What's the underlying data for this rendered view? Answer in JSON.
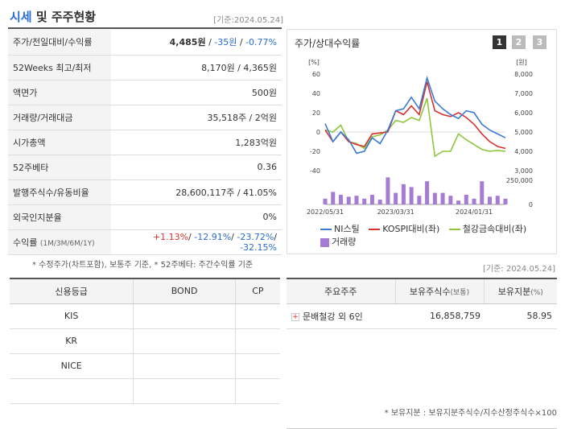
{
  "header": {
    "title_part1": "시세",
    "title_part2": " 및 주주현황",
    "date": "[기준:2024.05.24]"
  },
  "info_rows": [
    {
      "label": "주가/전일대비/수익률",
      "price": "4,485원",
      "sep1": " / ",
      "change": "-35원",
      "sep2": " / ",
      "rate": "-0.77%"
    },
    {
      "label": "52Weeks 최고/최저",
      "value": "8,170원 / 4,365원"
    },
    {
      "label": "액면가",
      "value": "500원"
    },
    {
      "label": "거래량/거래대금",
      "value": "35,518주 / 2억원"
    },
    {
      "label": "시가총액",
      "value": "1,283억원"
    },
    {
      "label": "52주베타",
      "value": "0.36"
    },
    {
      "label": "발행주식수/유동비율",
      "value": "28,600,117주 / 41.05%"
    },
    {
      "label": "외국인지분율",
      "value": "0%"
    },
    {
      "label": "수익률",
      "label_sub": "(1M/3M/6M/1Y)",
      "r1": "+1.13%",
      "r2": "-12.91%",
      "r3": "-23.72%",
      "r4": "-32.15%",
      "sep": "/ "
    }
  ],
  "note1": "* 수정주가(차트포함), 보통주 기준, * 52주베타: 주간수익률 기준",
  "chart": {
    "title": "주가/상대수익률",
    "buttons": [
      "1",
      "2",
      "3"
    ],
    "left_unit": "[%]",
    "right_unit": "[원]",
    "left_ticks": [
      "60",
      "40",
      "20",
      "0",
      "-20",
      "-40"
    ],
    "right_ticks": [
      "8,000",
      "7,000",
      "6,000",
      "5,000",
      "4,000",
      "3,000"
    ],
    "volume_ticks": [
      "250,000",
      "0"
    ],
    "x_ticks": [
      "2022/05/31",
      "2023/03/31",
      "2024/01/31"
    ],
    "legend": {
      "s1": "NI스틸",
      "s2": "KOSPI대비(좌)",
      "s3": "철강금속대비(좌)",
      "s4": "거래량"
    },
    "colors": {
      "s1": "#3a7bd5",
      "s2": "#d93030",
      "s3": "#8dc63f",
      "s4": "#a57bd4"
    }
  },
  "chart_data": {
    "type": "line",
    "title": "주가/상대수익률",
    "x": [
      "2022/05/31",
      "2022/07",
      "2022/08",
      "2022/09",
      "2022/10",
      "2022/11",
      "2022/12",
      "2023/01",
      "2023/02",
      "2023/03/31",
      "2023/04",
      "2023/05",
      "2023/06",
      "2023/07",
      "2023/08",
      "2023/09",
      "2023/10",
      "2023/11",
      "2023/12",
      "2024/01/31",
      "2024/02",
      "2024/03",
      "2024/04",
      "2024/05"
    ],
    "series": [
      {
        "name": "NI스틸",
        "axis": "right",
        "values": [
          5430,
          4500,
          5000,
          4600,
          3900,
          4000,
          4700,
          4400,
          5100,
          6100,
          6200,
          6800,
          6200,
          7800,
          6600,
          6200,
          5900,
          5700,
          6100,
          6000,
          5400,
          5100,
          4900,
          4700
        ]
      },
      {
        "name": "KOSPI대비(좌)",
        "axis": "left",
        "values": [
          2,
          -10,
          0,
          -10,
          -13,
          -15,
          -2,
          -1,
          0,
          22,
          18,
          27,
          18,
          52,
          22,
          18,
          16,
          20,
          15,
          8,
          -2,
          -10,
          -15,
          -17
        ]
      },
      {
        "name": "철강금속대비(좌)",
        "axis": "left",
        "values": [
          2,
          0,
          7,
          -10,
          -12,
          -17,
          -5,
          -3,
          2,
          12,
          10,
          15,
          12,
          35,
          -25,
          -20,
          -20,
          -2,
          -8,
          -13,
          -18,
          -20,
          -19,
          -20
        ]
      },
      {
        "name": "거래량",
        "axis": "volume",
        "values": [
          60000,
          130000,
          100000,
          80000,
          90000,
          60000,
          100000,
          50000,
          280000,
          120000,
          210000,
          180000,
          90000,
          240000,
          120000,
          120000,
          90000,
          40000,
          100000,
          60000,
          240000,
          80000,
          90000,
          60000
        ]
      }
    ],
    "ylim_left": [
      -40,
      60
    ],
    "ylim_right": [
      3000,
      8000
    ],
    "ylim_volume": [
      0,
      250000
    ]
  },
  "credit": {
    "headers": [
      "신용등급",
      "BOND",
      "CP"
    ],
    "rows": [
      [
        "KIS",
        "",
        ""
      ],
      [
        "KR",
        "",
        ""
      ],
      [
        "NICE",
        "",
        ""
      ],
      [
        "",
        "",
        ""
      ]
    ]
  },
  "holders": {
    "date": "[기준: 2024.05.24]",
    "headers": [
      "주요주주",
      "보유주식수",
      "(보통)",
      "보유지분",
      "(%)"
    ],
    "rows": [
      {
        "name": "문배철강 외 6인",
        "shares": "16,858,759",
        "pct": "58.95"
      }
    ]
  },
  "note2": "* 보유지분 : 보유지분주식수/지수산정주식수×100"
}
